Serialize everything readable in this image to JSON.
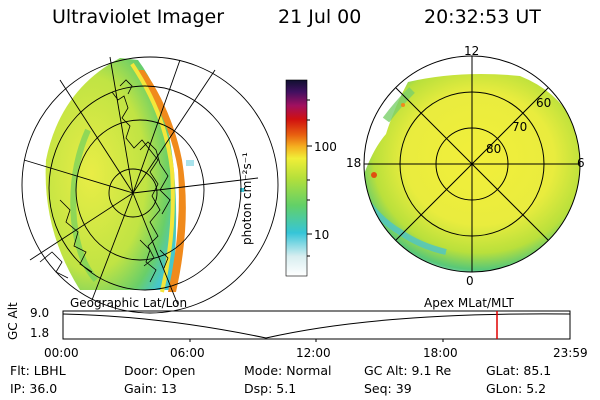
{
  "header": {
    "title": "Ultraviolet Imager",
    "date": "21 Jul 00",
    "time": "20:32:53 UT"
  },
  "colorbar": {
    "unit_label": "photon cm⁻²s⁻¹",
    "ticks": [
      "100",
      "10"
    ]
  },
  "polar_plot": {
    "mlt_labels": [
      "12",
      "18",
      "6",
      "0"
    ],
    "lat_labels": [
      "60",
      "70",
      "80"
    ]
  },
  "map_labels": {
    "left": "Geographic Lat/Lon",
    "right": "Apex MLat/MLT"
  },
  "altitude_plot": {
    "axis_label": "GC Alt",
    "y_ticks": [
      "9.0",
      "1.8"
    ],
    "x_ticks": [
      "00:00",
      "06:00",
      "12:00",
      "18:00",
      "23:59"
    ],
    "marker_color": "#e00000"
  },
  "info": {
    "row1": [
      {
        "key": "Flt:",
        "value": "LBHL"
      },
      {
        "key": "Door:",
        "value": "Open"
      },
      {
        "key": "Mode:",
        "value": "Normal"
      },
      {
        "key": "GC Alt:",
        "value": "9.1 Re"
      },
      {
        "key": "GLat:",
        "value": "85.1"
      }
    ],
    "row2": [
      {
        "key": "IP:",
        "value": "36.0"
      },
      {
        "key": "Gain:",
        "value": "13"
      },
      {
        "key": "Dsp:",
        "value": "5.1"
      },
      {
        "key": "Seq:",
        "value": "39"
      },
      {
        "key": "GLon:",
        "value": "5.2"
      }
    ]
  },
  "colors": {
    "aurora_low": "#3fc7d8",
    "aurora_mid": "#a8e03a",
    "aurora_high": "#e8ee3c",
    "aurora_peak": "#f08a1c"
  }
}
